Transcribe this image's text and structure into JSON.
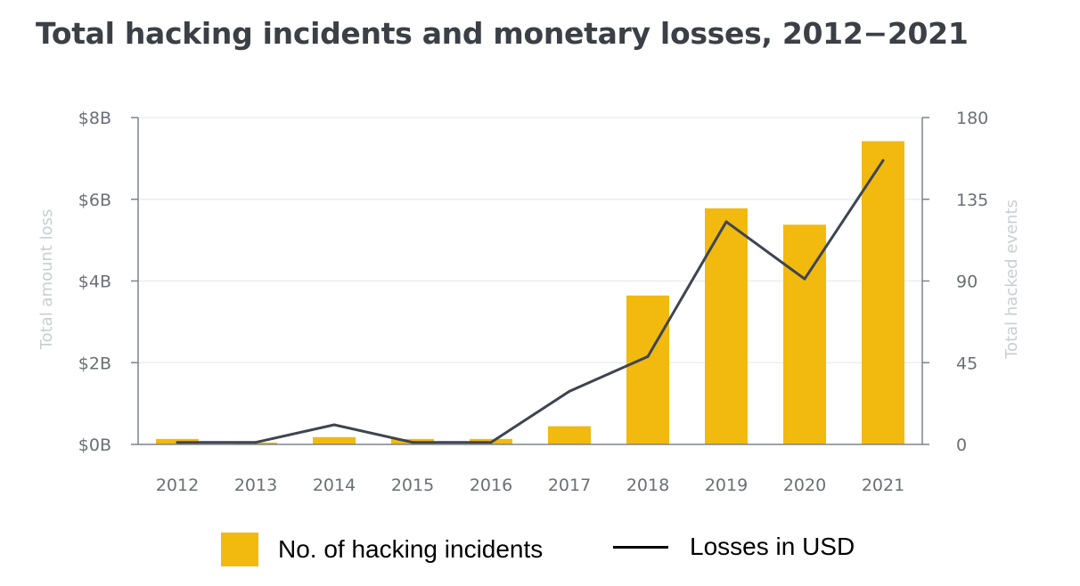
{
  "chart_data": {
    "type": "bar",
    "title": "Total hacking incidents and monetary losses, 2012−2021",
    "categories": [
      "2012",
      "2013",
      "2014",
      "2015",
      "2016",
      "2017",
      "2018",
      "2019",
      "2020",
      "2021"
    ],
    "series": [
      {
        "name": "No. of hacking incidents",
        "type": "bar",
        "axis": "right",
        "color": "#f2b90f",
        "values": [
          3,
          1,
          4,
          3,
          3,
          10,
          82,
          130,
          121,
          167
        ]
      },
      {
        "name": "Losses in USD",
        "type": "line",
        "axis": "left",
        "color": "#3d4550",
        "values": [
          0.05,
          0.05,
          0.48,
          0.05,
          0.05,
          1.3,
          2.15,
          5.45,
          4.05,
          6.95
        ]
      }
    ],
    "y_left": {
      "label": "Total amount loss",
      "ticks": [
        "$0B",
        "$2B",
        "$4B",
        "$6B",
        "$8B"
      ],
      "range": [
        0,
        8
      ]
    },
    "y_right": {
      "label": "Total hacked events",
      "ticks": [
        "0",
        "45",
        "90",
        "135",
        "180"
      ],
      "range": [
        0,
        180
      ]
    },
    "grid": true,
    "legend_position": "bottom"
  }
}
